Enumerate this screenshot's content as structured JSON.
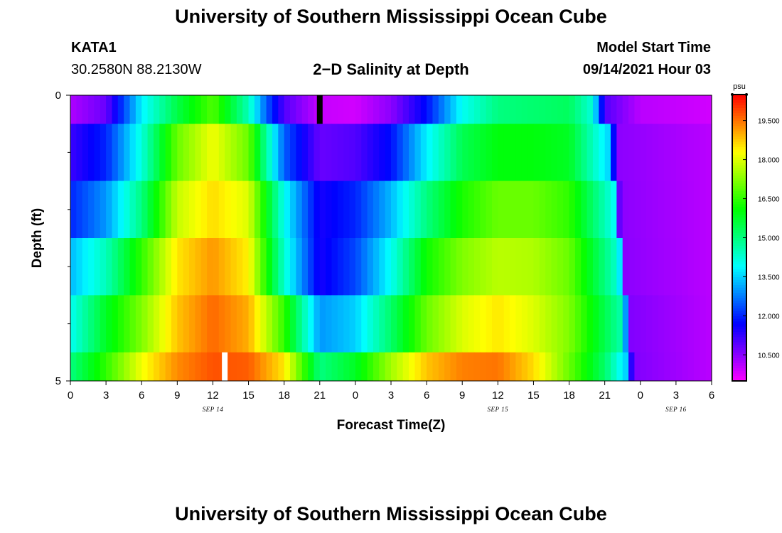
{
  "header": {
    "title": "University of Southern Mississippi Ocean Cube",
    "station": "KATA1",
    "coords": "30.2580N  88.2130W",
    "subtitle": "2−D Salinity at Depth",
    "model_start_label": "Model Start Time",
    "model_start_value": "09/14/2021 Hour 03"
  },
  "footer": {
    "title": "University of Southern Mississippi Ocean Cube"
  },
  "chart_data": {
    "type": "heatmap",
    "title": "2−D Salinity at Depth",
    "xlabel": "Forecast Time(Z)",
    "ylabel": "Depth (ft)",
    "x_tick_labels": [
      "0",
      "3",
      "6",
      "9",
      "12",
      "15",
      "18",
      "21",
      "0",
      "3",
      "6",
      "9",
      "12",
      "15",
      "18",
      "21",
      "0",
      "3",
      "6"
    ],
    "date_labels": [
      {
        "label": "SEP 14",
        "tick_index": 4
      },
      {
        "label": "SEP 15",
        "tick_index": 12
      },
      {
        "label": "SEP 16",
        "tick_index": 17
      }
    ],
    "x_range_hours": [
      0,
      54
    ],
    "y_range": [
      0,
      5
    ],
    "y_tick_labels": [
      {
        "value": 0,
        "label": "0"
      },
      {
        "value": 5,
        "label": "5"
      }
    ],
    "colorbar": {
      "unit": "psu",
      "range": [
        9.5,
        20.5
      ],
      "tick_labels": [
        "19.500",
        "18.000",
        "16.500",
        "15.000",
        "13.500",
        "12.000",
        "10.500"
      ],
      "tick_values": [
        19.5,
        18.0,
        16.5,
        15.0,
        13.5,
        12.0,
        10.5
      ]
    },
    "layers": [
      {
        "depth_range": [
          0.0,
          0.5
        ],
        "key_hours": [
          0,
          3,
          6,
          9,
          12,
          15,
          16.5,
          18,
          21,
          24,
          27,
          30,
          33,
          36,
          42,
          44,
          45,
          48,
          54
        ],
        "key_values": [
          10.2,
          10.8,
          13.8,
          15.5,
          16.8,
          14.5,
          12.5,
          11.0,
          10.0,
          9.9,
          10.5,
          11.8,
          14.0,
          15.0,
          15.3,
          14.2,
          11.0,
          10.1,
          9.9
        ]
      },
      {
        "depth_range": [
          0.5,
          1.5
        ],
        "key_hours": [
          0,
          3,
          6,
          9,
          12,
          15,
          18,
          21,
          24,
          27,
          30,
          33,
          36,
          39,
          42,
          45.4,
          46,
          54
        ],
        "key_values": [
          11.2,
          12.0,
          14.2,
          17.0,
          18.2,
          17.0,
          12.5,
          10.8,
          11.0,
          11.8,
          13.8,
          15.4,
          16.0,
          16.0,
          15.8,
          13.5,
          10.5,
          10.1
        ]
      },
      {
        "depth_range": [
          1.5,
          2.5
        ],
        "key_hours": [
          0,
          3,
          6,
          9,
          12,
          15,
          18,
          21,
          24,
          27,
          30,
          33,
          36,
          39,
          42,
          45.8,
          46.3,
          54
        ],
        "key_values": [
          12.0,
          13.0,
          15.0,
          17.8,
          18.6,
          18.0,
          14.0,
          11.5,
          12.0,
          13.3,
          15.0,
          16.3,
          17.0,
          17.0,
          16.5,
          14.0,
          10.5,
          10.1
        ]
      },
      {
        "depth_range": [
          2.5,
          3.5
        ],
        "key_hours": [
          0,
          3,
          6,
          9,
          12,
          15,
          18,
          21,
          24,
          27,
          30,
          33,
          36,
          39,
          42,
          46.2,
          46.6,
          54
        ],
        "key_values": [
          13.3,
          14.5,
          16.5,
          18.5,
          19.2,
          18.4,
          14.3,
          11.5,
          12.3,
          14.0,
          16.2,
          17.2,
          17.7,
          17.6,
          17.0,
          14.2,
          10.5,
          10.1
        ]
      },
      {
        "depth_range": [
          3.5,
          4.5
        ],
        "key_hours": [
          0,
          3,
          6,
          9,
          12,
          15,
          18,
          21,
          24,
          27,
          30,
          33,
          36,
          39,
          42,
          46.6,
          47.0,
          54
        ],
        "key_values": [
          14.0,
          15.8,
          17.2,
          18.8,
          19.6,
          19.0,
          16.5,
          13.0,
          13.5,
          15.2,
          17.0,
          18.0,
          18.5,
          18.0,
          17.2,
          14.5,
          10.6,
          10.1
        ]
      },
      {
        "depth_range": [
          4.5,
          5.0
        ],
        "key_hours": [
          0,
          3,
          6,
          9,
          12,
          15,
          18,
          21,
          24,
          27,
          30,
          33,
          36,
          39,
          42,
          45,
          46.8,
          47.4,
          54
        ],
        "key_values": [
          15.0,
          16.5,
          18.2,
          19.3,
          19.8,
          19.7,
          18.5,
          15.0,
          15.8,
          17.5,
          18.8,
          19.4,
          19.5,
          18.6,
          17.0,
          15.2,
          13.5,
          10.6,
          10.1
        ]
      }
    ],
    "markers": [
      {
        "color": "#000000",
        "hour": 21,
        "depth_range": [
          0.0,
          0.5
        ]
      },
      {
        "color": "#ffffff",
        "hour": 13,
        "depth_range": [
          4.5,
          5.0
        ]
      }
    ]
  }
}
